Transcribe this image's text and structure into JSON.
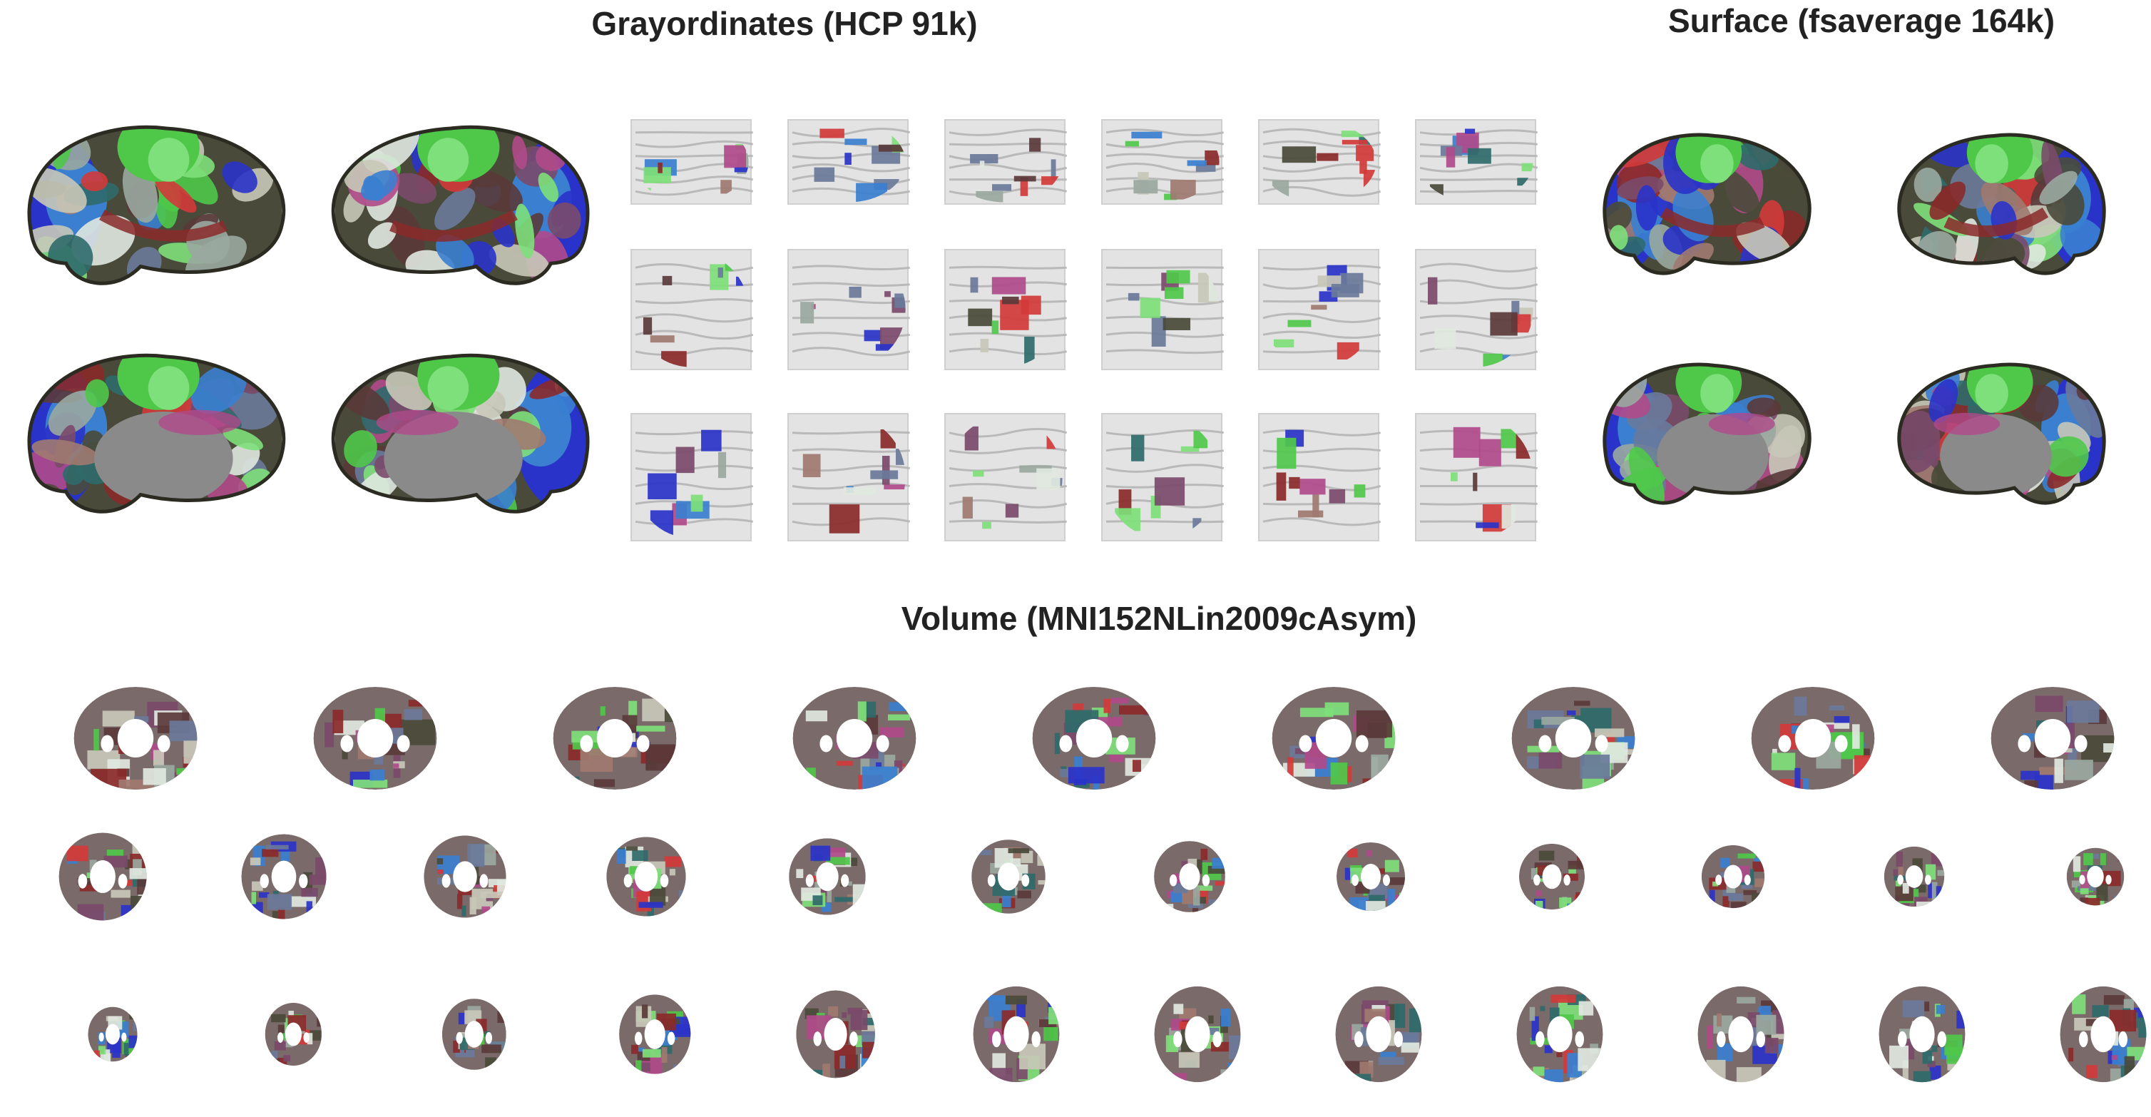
{
  "titles": {
    "grayordinates": "Grayordinates (HCP 91k)",
    "surface": "Surface (fsaverage 164k)",
    "volume": "Volume (MNI152NLin2009cAsym)"
  },
  "colors": {
    "title": "#222222",
    "background": "#ffffff",
    "parcel_palette": [
      "#2a33c9",
      "#3a7fd0",
      "#4fc84a",
      "#7ee07a",
      "#5a3a3a",
      "#7a4a6a",
      "#b04a8a",
      "#c8c8b8",
      "#9aa8a0",
      "#4a4a3a",
      "#2f6a6a",
      "#8a2a2a",
      "#d23a3a",
      "#e0e8e0",
      "#6a7a9a",
      "#a07a70"
    ],
    "medial_wall": "#8a8a8a",
    "brain_tissue": "#e3e3e3"
  },
  "icons": {
    "surface_lateral": "cortical-surface-lateral-view",
    "surface_medial": "cortical-surface-medial-view",
    "subcortical_slice": "subcortical-volume-slice",
    "volume_slice": "volume-parcellation-slice"
  }
}
